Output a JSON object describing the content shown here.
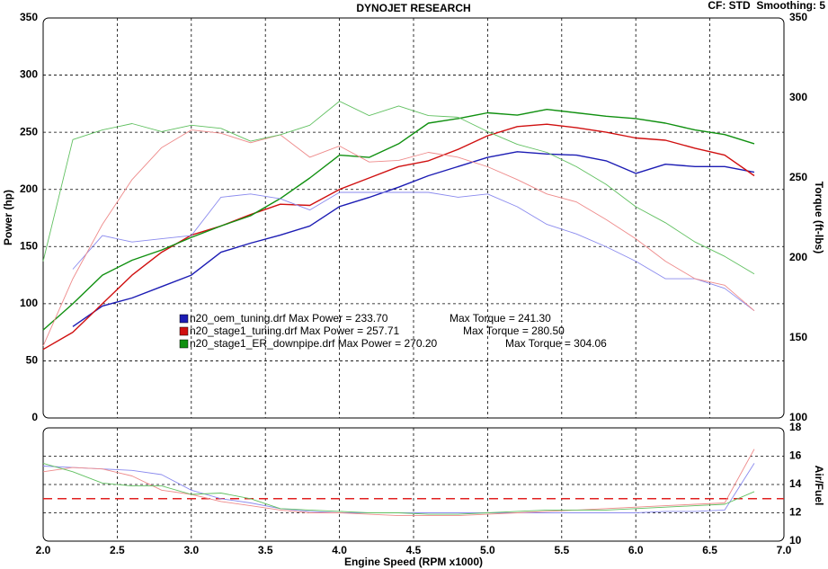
{
  "header": {
    "title": "DYNOJET RESEARCH",
    "settings": "CF: STD  Smoothing: 5"
  },
  "chart_data": [
    {
      "type": "line",
      "xlabel": "Engine Speed (RPM x1000)",
      "ylabel": "Power (hp)",
      "y2label": "Torque (ft-lbs)",
      "x": [
        2.0,
        2.2,
        2.4,
        2.6,
        2.8,
        3.0,
        3.2,
        3.4,
        3.6,
        3.8,
        4.0,
        4.2,
        4.4,
        4.6,
        4.8,
        5.0,
        5.2,
        5.4,
        5.6,
        5.8,
        6.0,
        6.2,
        6.4,
        6.6,
        6.8
      ],
      "xlim": [
        2,
        7
      ],
      "xticks": [
        {
          "value": 2,
          "label": "2.0"
        },
        2.5,
        {
          "value": 3,
          "label": "3.0"
        },
        3.5,
        {
          "value": 4,
          "label": "4.0"
        },
        4.5,
        {
          "value": 5,
          "label": "5.0"
        },
        5.5,
        {
          "value": 6,
          "label": "6.0"
        },
        6.5,
        {
          "value": 7,
          "label": "7.0"
        }
      ],
      "ylim": [
        0,
        350
      ],
      "yticks": [
        0,
        50,
        100,
        150,
        200,
        250,
        300,
        350
      ],
      "y2lim": [
        100,
        350
      ],
      "y2ticks": [
        100,
        150,
        200,
        250,
        300,
        350
      ],
      "grid": true,
      "legend": [
        {
          "color": "#1c1cb4",
          "label": "n20_oem_tuning.drf Max Power = 233.70",
          "torque_label": "Max Torque = 241.30"
        },
        {
          "color": "#d01010",
          "label": "n20_stage1_tuning.drf Max Power = 257.71",
          "torque_label": "Max Torque = 280.50"
        },
        {
          "color": "#109010",
          "label": "n20_stage1_ER_downpipe.drf Max Power = 270.20",
          "torque_label": "Max Torque = 304.06"
        }
      ],
      "series": [
        {
          "color": "#1c1cb4",
          "width": 1.4,
          "values": [
            null,
            80,
            98,
            105,
            115,
            125,
            145,
            153,
            160,
            168,
            185,
            193,
            202,
            212,
            220,
            228,
            233,
            231,
            230,
            225,
            214,
            222,
            220,
            220,
            215
          ]
        },
        {
          "color": "#d01010",
          "width": 1.4,
          "values": [
            60,
            75,
            100,
            125,
            145,
            160,
            168,
            178,
            187,
            186,
            200,
            210,
            220,
            225,
            235,
            247,
            255,
            257,
            254,
            250,
            245,
            243,
            236,
            230,
            212
          ]
        },
        {
          "color": "#109010",
          "width": 1.4,
          "values": [
            77,
            100,
            125,
            138,
            147,
            158,
            168,
            177,
            192,
            210,
            230,
            228,
            240,
            258,
            262,
            267,
            265,
            270,
            267,
            264,
            262,
            258,
            252,
            248,
            240
          ]
        },
        {
          "color": "#8a8aee",
          "width": 0.9,
          "axis": "y2",
          "values": [
            null,
            193,
            214,
            210,
            212,
            214,
            238,
            240,
            237,
            230,
            241,
            241,
            241,
            241,
            238,
            240,
            232,
            221,
            215,
            207,
            198,
            187,
            187,
            181,
            167
          ]
        },
        {
          "color": "#ee8a8a",
          "width": 0.9,
          "axis": "y2",
          "values": [
            145,
            187,
            221,
            249,
            269,
            280,
            278,
            272,
            277,
            263,
            270,
            260,
            261,
            266,
            263,
            257,
            249,
            240,
            235,
            224,
            212,
            198,
            187,
            183,
            167
          ]
        },
        {
          "color": "#60c060",
          "width": 0.9,
          "axis": "y2",
          "values": [
            198,
            274,
            280,
            284,
            279,
            283,
            281,
            273,
            277,
            283,
            298,
            289,
            295,
            289,
            288,
            279,
            271,
            266,
            257,
            246,
            232,
            222,
            210,
            201,
            190
          ]
        }
      ]
    },
    {
      "type": "line",
      "y2label": "Air/Fuel",
      "x": [
        2.0,
        2.2,
        2.4,
        2.6,
        2.8,
        3.0,
        3.2,
        3.4,
        3.6,
        3.8,
        4.0,
        4.2,
        4.4,
        4.6,
        4.8,
        5.0,
        5.2,
        5.4,
        5.6,
        5.8,
        6.0,
        6.2,
        6.4,
        6.6,
        6.8
      ],
      "xlim": [
        2,
        7
      ],
      "xticks": [
        {
          "value": 2,
          "label": "2.0"
        },
        2.5,
        {
          "value": 3,
          "label": "3.0"
        },
        3.5,
        {
          "value": 4,
          "label": "4.0"
        },
        4.5,
        {
          "value": 5,
          "label": "5.0"
        },
        5.5,
        {
          "value": 6,
          "label": "6.0"
        },
        6.5,
        {
          "value": 7,
          "label": "7.0"
        }
      ],
      "y2lim": [
        10,
        18
      ],
      "y2ticks": [
        10,
        12,
        14,
        16,
        18
      ],
      "grid": true,
      "reference": 13,
      "reference_color": "#e02020",
      "series": [
        {
          "color": "#8a8aee",
          "width": 0.9,
          "axis": "y2",
          "values": [
            15.3,
            15.2,
            15.1,
            15.0,
            14.7,
            13.6,
            13.0,
            12.7,
            12.3,
            12.1,
            12.0,
            12.0,
            12.0,
            12.0,
            12.0,
            12.0,
            12.0,
            12.0,
            12.0,
            12.0,
            12.0,
            12.1,
            12.1,
            12.2,
            15.5
          ]
        },
        {
          "color": "#ee8a8a",
          "width": 0.9,
          "axis": "y2",
          "values": [
            14.9,
            15.2,
            15.1,
            14.6,
            13.6,
            13.3,
            12.8,
            12.5,
            12.2,
            12.0,
            12.0,
            11.9,
            11.8,
            11.8,
            11.8,
            11.9,
            12.0,
            12.1,
            12.2,
            12.3,
            12.4,
            12.5,
            12.6,
            12.7,
            16.5
          ]
        },
        {
          "color": "#60c060",
          "width": 0.9,
          "axis": "y2",
          "values": [
            15.5,
            14.9,
            14.1,
            13.9,
            13.9,
            13.3,
            13.4,
            13.0,
            12.3,
            12.2,
            12.1,
            12.0,
            12.0,
            11.9,
            11.9,
            12.0,
            12.1,
            12.2,
            12.2,
            12.2,
            12.3,
            12.4,
            12.5,
            12.6,
            13.5
          ]
        }
      ]
    }
  ]
}
